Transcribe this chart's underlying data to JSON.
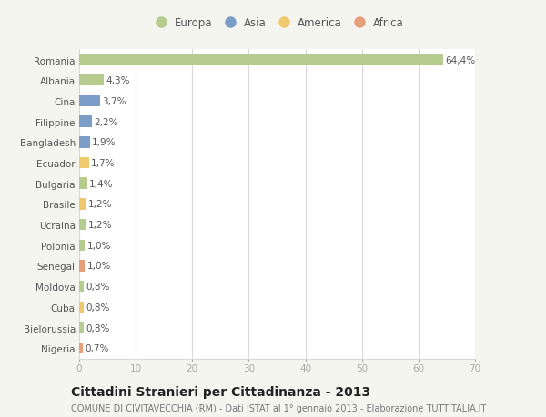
{
  "countries": [
    "Romania",
    "Albania",
    "Cina",
    "Filippine",
    "Bangladesh",
    "Ecuador",
    "Bulgaria",
    "Brasile",
    "Ucraina",
    "Polonia",
    "Senegal",
    "Moldova",
    "Cuba",
    "Bielorussia",
    "Nigeria"
  ],
  "values": [
    64.4,
    4.3,
    3.7,
    2.2,
    1.9,
    1.7,
    1.4,
    1.2,
    1.2,
    1.0,
    1.0,
    0.8,
    0.8,
    0.8,
    0.7
  ],
  "labels": [
    "64,4%",
    "4,3%",
    "3,7%",
    "2,2%",
    "1,9%",
    "1,7%",
    "1,4%",
    "1,2%",
    "1,2%",
    "1,0%",
    "1,0%",
    "0,8%",
    "0,8%",
    "0,8%",
    "0,7%"
  ],
  "continents": [
    "Europa",
    "Europa",
    "Asia",
    "Asia",
    "Asia",
    "America",
    "Europa",
    "America",
    "Europa",
    "Europa",
    "Africa",
    "Europa",
    "America",
    "Europa",
    "Africa"
  ],
  "colors": {
    "Europa": "#b5cc8e",
    "Asia": "#7b9dc7",
    "America": "#f0c96e",
    "Africa": "#e8a07a"
  },
  "bg_color": "#f5f5f0",
  "plot_bg_color": "#ffffff",
  "grid_color": "#d8d8d8",
  "title": "Cittadini Stranieri per Cittadinanza - 2013",
  "subtitle": "COMUNE DI CIVITAVECCHIA (RM) - Dati ISTAT al 1° gennaio 2013 - Elaborazione TUTTITALIA.IT",
  "xlim": [
    0,
    70
  ],
  "xticks": [
    0,
    10,
    20,
    30,
    40,
    50,
    60,
    70
  ],
  "bar_height": 0.55,
  "label_fontsize": 7.5,
  "tick_fontsize": 7.5,
  "title_fontsize": 10,
  "subtitle_fontsize": 7,
  "legend_entries": [
    "Europa",
    "Asia",
    "America",
    "Africa"
  ]
}
